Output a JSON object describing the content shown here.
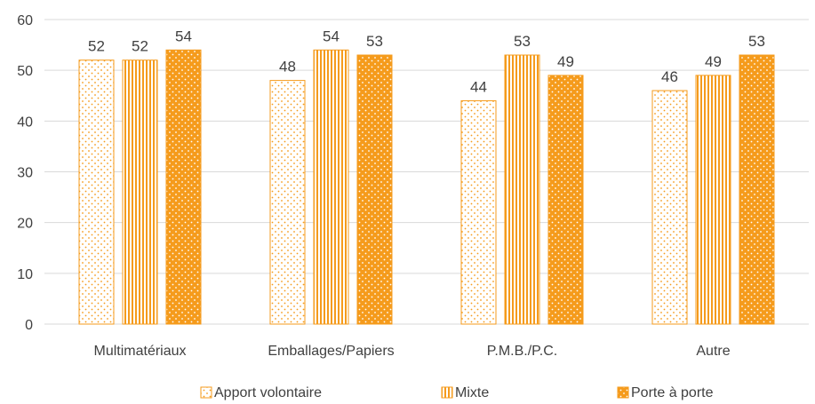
{
  "chart_data": {
    "type": "bar",
    "categories": [
      "Multimatériaux",
      "Emballages/Papiers",
      "P.M.B./P.C.",
      "Autre"
    ],
    "series": [
      {
        "name": "Apport volontaire",
        "values": [
          52,
          48,
          44,
          46
        ],
        "labels": [
          "52",
          "48",
          "44",
          "46"
        ],
        "pattern": "dots-light"
      },
      {
        "name": "Mixte",
        "values": [
          52,
          54,
          53,
          49
        ],
        "labels": [
          "52",
          "54",
          "53",
          "49"
        ],
        "pattern": "vertical-stripes"
      },
      {
        "name": "Porte à porte",
        "values": [
          54,
          53,
          49,
          53
        ],
        "labels": [
          "54",
          "53",
          "49",
          "53"
        ],
        "pattern": "dots-dark"
      }
    ],
    "ylim": [
      0,
      60
    ],
    "yticks": [
      "0",
      "10",
      "20",
      "30",
      "40",
      "50",
      "60"
    ],
    "grid": true,
    "legend_position": "bottom",
    "title": "",
    "xlabel": "",
    "ylabel": "",
    "colors": {
      "accent": "#f59b1c",
      "grid": "#d9d9d9",
      "text": "#404040"
    }
  }
}
